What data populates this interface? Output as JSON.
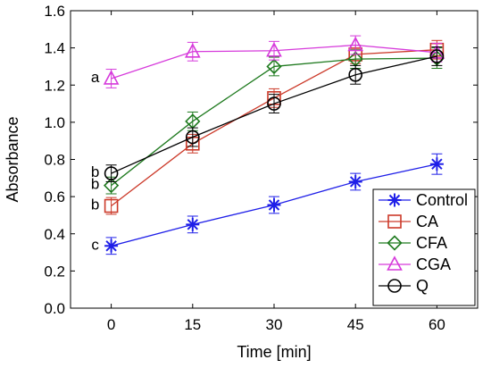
{
  "chart_data": {
    "type": "line",
    "title": "",
    "xlabel": "Time [min]",
    "ylabel": "Absorbance",
    "x": [
      0,
      15,
      30,
      45,
      60
    ],
    "x_tick_labels": [
      "0",
      "15",
      "30",
      "45",
      "60"
    ],
    "xlim": [
      -7.5,
      67.5
    ],
    "ylim": [
      0.0,
      1.6
    ],
    "y_ticks": [
      0.0,
      0.2,
      0.4,
      0.6,
      0.8,
      1.0,
      1.2,
      1.4,
      1.6
    ],
    "y_tick_labels": [
      "0.0",
      "0.2",
      "0.4",
      "0.6",
      "0.8",
      "1.0",
      "1.2",
      "1.4",
      "1.6"
    ],
    "grid": false,
    "legend_position": "bottom-right",
    "series": [
      {
        "name": "Control",
        "marker": "asterisk",
        "color": "#1f1fe8",
        "values": [
          0.335,
          0.45,
          0.555,
          0.68,
          0.775
        ],
        "errors": [
          0.045,
          0.045,
          0.045,
          0.045,
          0.055
        ]
      },
      {
        "name": "CA",
        "marker": "square",
        "color": "#cc3a2a",
        "values": [
          0.55,
          0.885,
          1.13,
          1.365,
          1.39
        ],
        "errors": [
          0.045,
          0.05,
          0.05,
          0.05,
          0.05
        ]
      },
      {
        "name": "CFA",
        "marker": "diamond",
        "color": "#1f7a1f",
        "values": [
          0.66,
          1.005,
          1.3,
          1.34,
          1.345
        ],
        "errors": [
          0.045,
          0.05,
          0.05,
          0.05,
          0.055
        ]
      },
      {
        "name": "CGA",
        "marker": "triangle",
        "color": "#d63adb",
        "values": [
          1.235,
          1.38,
          1.385,
          1.415,
          1.375
        ],
        "errors": [
          0.05,
          0.05,
          0.05,
          0.05,
          0.05
        ]
      },
      {
        "name": "Q",
        "marker": "circle",
        "color": "#000000",
        "values": [
          0.725,
          0.92,
          1.1,
          1.255,
          1.355
        ],
        "errors": [
          0.045,
          0.05,
          0.05,
          0.05,
          0.05
        ]
      }
    ],
    "annotations": [
      {
        "text": "a",
        "x": 0,
        "y": 1.235
      },
      {
        "text": "b",
        "x": 0,
        "y": 0.725
      },
      {
        "text": "b",
        "x": 0,
        "y": 0.66
      },
      {
        "text": "b",
        "x": 0,
        "y": 0.55
      },
      {
        "text": "c",
        "x": 0,
        "y": 0.335
      }
    ]
  }
}
